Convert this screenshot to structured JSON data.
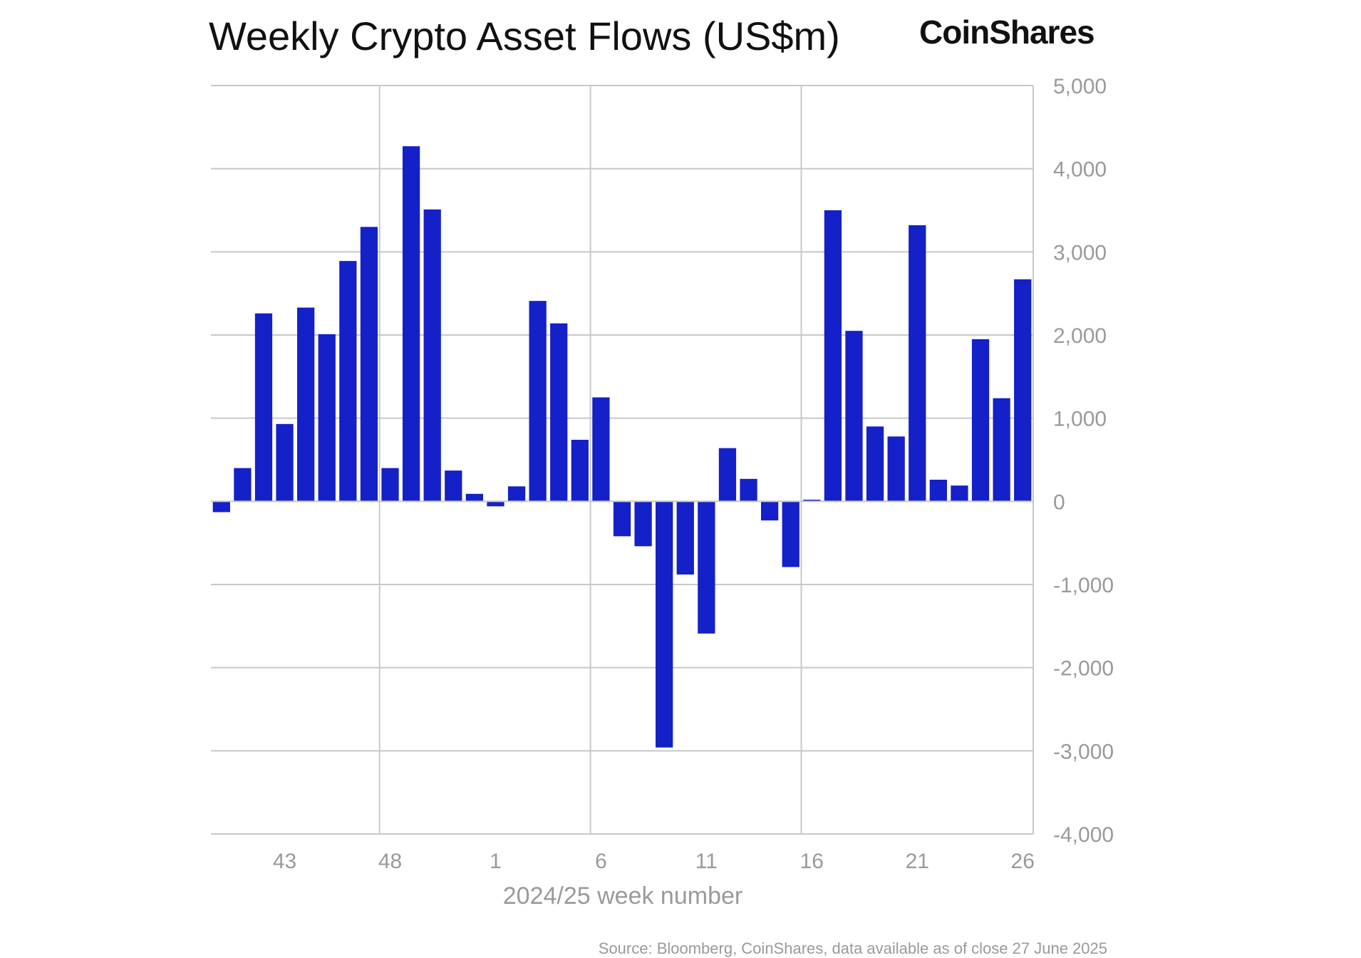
{
  "title": "Weekly Crypto Asset Flows (US$m)",
  "brand": "CoinShares",
  "source": "Source: Bloomberg, CoinShares, data available as of close 27 June 2025",
  "colors": {
    "bar": "#1420C8",
    "grid": "#c8c8c8",
    "tick_text": "#9a9a9a"
  },
  "chart_data": {
    "type": "bar",
    "title": "Weekly Crypto Asset Flows (US$m)",
    "xlabel": "2024/25 week number",
    "ylabel": "",
    "ylim": [
      -4000,
      5000
    ],
    "yticks": [
      -4000,
      -3000,
      -2000,
      -1000,
      0,
      1000,
      2000,
      3000,
      4000,
      5000
    ],
    "ytick_labels": [
      "-4,000",
      "-3,000",
      "-2,000",
      "-1,000",
      "0",
      "1,000",
      "2,000",
      "3,000",
      "4,000",
      "5,000"
    ],
    "xtick_labels": [
      "43",
      "48",
      "1",
      "6",
      "11",
      "16",
      "21",
      "26"
    ],
    "xtick_categories": [
      "43",
      "48",
      "1",
      "6",
      "11",
      "16",
      "21",
      "26"
    ],
    "vertical_gridlines_at": [
      "48",
      "6",
      "16"
    ],
    "grid": true,
    "y_axis_side": "right",
    "categories": [
      "40",
      "41",
      "42",
      "43",
      "44",
      "45",
      "46",
      "47",
      "48",
      "49",
      "50",
      "51",
      "52",
      "1",
      "2",
      "3",
      "4",
      "5",
      "6",
      "7",
      "8",
      "9",
      "10",
      "11",
      "12",
      "13",
      "14",
      "15",
      "16",
      "17",
      "18",
      "19",
      "20",
      "21",
      "22",
      "23",
      "24",
      "25",
      "26"
    ],
    "values": [
      -130,
      400,
      2260,
      930,
      2330,
      2010,
      2890,
      3300,
      400,
      4270,
      3510,
      370,
      90,
      -60,
      180,
      2410,
      2140,
      740,
      1250,
      -420,
      -540,
      -2960,
      -880,
      -1590,
      640,
      270,
      -230,
      -790,
      20,
      3500,
      2050,
      900,
      780,
      3320,
      260,
      190,
      1950,
      1240,
      2670
    ]
  }
}
